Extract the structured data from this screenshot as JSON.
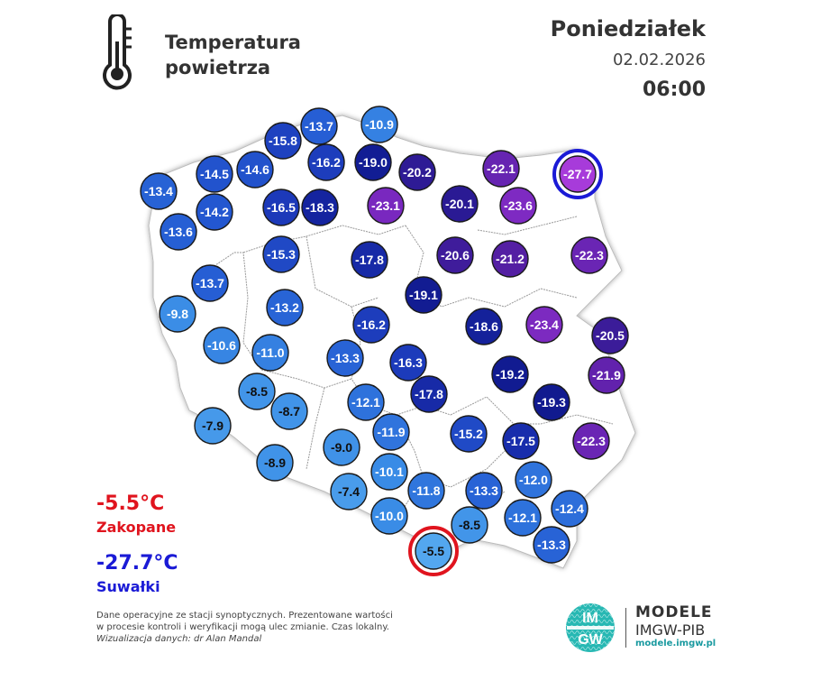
{
  "header": {
    "title_line1": "Temperatura",
    "title_line2": "powietrza",
    "day": "Poniedziałek",
    "date": "02.02.2026",
    "time": "06:00"
  },
  "extremes": {
    "max_value": "-5.5°C",
    "max_city": "Zakopane",
    "max_color": "#e0141e",
    "min_value": "-27.7°C",
    "min_city": "Suwałki",
    "min_color": "#1a1ad6"
  },
  "footer": {
    "line1": "Dane operacyjne ze stacji synoptycznych. Prezentowane wartości",
    "line2": "w procesie kontroli i weryfikacji mogą ulec zmianie. Czas lokalny.",
    "credit": "Wizualizacja danych: dr Alan Mandal"
  },
  "logo": {
    "mark_top": "IM",
    "mark_bottom": "GW",
    "name": "MODELE",
    "org": "IMGW-PIB",
    "url": "modele.imgw.pl"
  },
  "icons": {
    "thermometer": "thermometer-icon"
  },
  "stations": [
    {
      "v": "-13.7"
    },
    {
      "v": "-10.9"
    },
    {
      "v": "-15.8"
    },
    {
      "v": "-16.2"
    },
    {
      "v": "-19.0"
    },
    {
      "v": "-14.5"
    },
    {
      "v": "-14.6"
    },
    {
      "v": "-13.4"
    },
    {
      "v": "-20.2"
    },
    {
      "v": "-22.1"
    },
    {
      "v": "-27.7",
      "highlight": "min"
    },
    {
      "v": "-14.2"
    },
    {
      "v": "-16.5"
    },
    {
      "v": "-18.3"
    },
    {
      "v": "-23.1"
    },
    {
      "v": "-20.1"
    },
    {
      "v": "-23.6"
    },
    {
      "v": "-13.6"
    },
    {
      "v": "-15.3"
    },
    {
      "v": "-17.8"
    },
    {
      "v": "-20.6"
    },
    {
      "v": "-21.2"
    },
    {
      "v": "-22.3"
    },
    {
      "v": "-13.7"
    },
    {
      "v": "-19.1"
    },
    {
      "v": "-9.8"
    },
    {
      "v": "-13.2"
    },
    {
      "v": "-16.2"
    },
    {
      "v": "-18.6"
    },
    {
      "v": "-23.4"
    },
    {
      "v": "-20.5"
    },
    {
      "v": "-10.6"
    },
    {
      "v": "-11.0"
    },
    {
      "v": "-13.3"
    },
    {
      "v": "-16.3"
    },
    {
      "v": "-19.2"
    },
    {
      "v": "-21.9"
    },
    {
      "v": "-8.5"
    },
    {
      "v": "-12.1"
    },
    {
      "v": "-17.8"
    },
    {
      "v": "-19.3"
    },
    {
      "v": "-8.7"
    },
    {
      "v": "-7.9"
    },
    {
      "v": "-11.9"
    },
    {
      "v": "-15.2"
    },
    {
      "v": "-17.5"
    },
    {
      "v": "-22.3"
    },
    {
      "v": "-9.0"
    },
    {
      "v": "-8.9"
    },
    {
      "v": "-10.1"
    },
    {
      "v": "-12.0"
    },
    {
      "v": "-7.4"
    },
    {
      "v": "-11.8"
    },
    {
      "v": "-13.3"
    },
    {
      "v": "-12.4"
    },
    {
      "v": "-10.0"
    },
    {
      "v": "-12.1"
    },
    {
      "v": "-8.5"
    },
    {
      "v": "-5.5",
      "highlight": "max"
    },
    {
      "v": "-13.3"
    }
  ]
}
